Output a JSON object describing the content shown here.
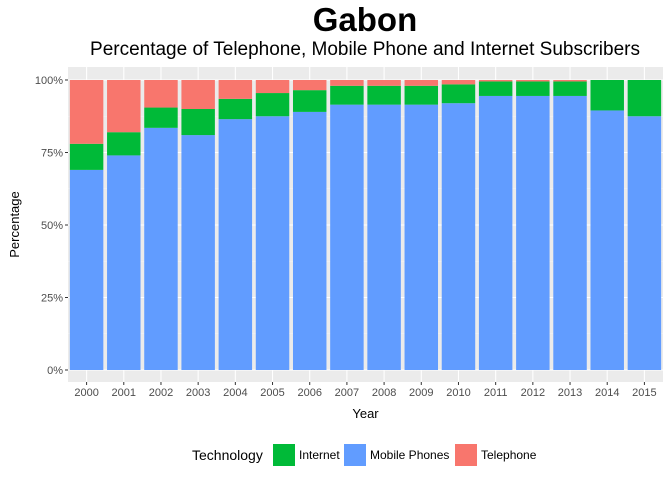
{
  "chart_data": {
    "type": "bar",
    "stacked": true,
    "title": "Gabon",
    "subtitle": "Percentage of Telephone, Mobile Phone and Internet Subscribers",
    "xlabel": "Year",
    "ylabel": "Percentage",
    "ylim": [
      0,
      100
    ],
    "yticks": [
      "0%",
      "25%",
      "50%",
      "75%",
      "100%"
    ],
    "categories": [
      "2000",
      "2001",
      "2002",
      "2003",
      "2004",
      "2005",
      "2006",
      "2007",
      "2008",
      "2009",
      "2010",
      "2011",
      "2012",
      "2013",
      "2014",
      "2015"
    ],
    "series": [
      {
        "name": "Mobile Phones",
        "color": "#619CFF",
        "values": [
          69,
          74,
          83.5,
          81,
          86.5,
          87.5,
          89,
          91.5,
          91.5,
          91.5,
          92,
          94.5,
          94.5,
          94.5,
          89.5,
          87.5
        ]
      },
      {
        "name": "Internet",
        "color": "#00BA38",
        "values": [
          9,
          8,
          7,
          9,
          7,
          8,
          7.5,
          6.5,
          6.5,
          6.5,
          6.5,
          5,
          5,
          5,
          10.5,
          12.5
        ]
      },
      {
        "name": "Telephone",
        "color": "#F8766D",
        "values": [
          22,
          18,
          9.5,
          10,
          6.5,
          4.5,
          3.5,
          2,
          2,
          2,
          1.5,
          0.5,
          0.5,
          0.5,
          0,
          0
        ]
      }
    ],
    "grid": true,
    "legend": {
      "position": "bottom",
      "title": "Technology",
      "entries": [
        "Internet",
        "Mobile Phones",
        "Telephone"
      ]
    }
  }
}
